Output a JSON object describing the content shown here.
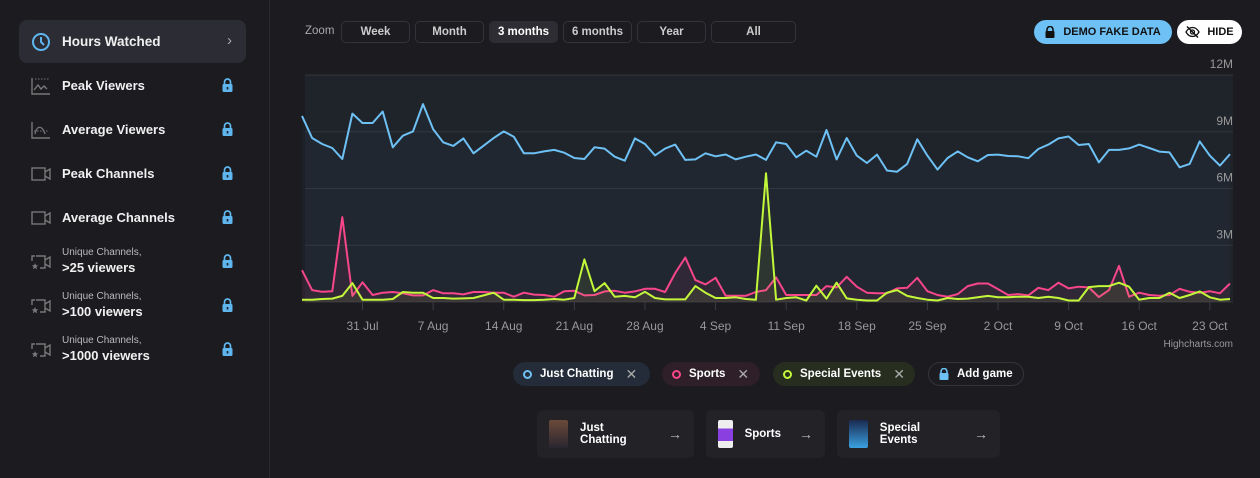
{
  "sidebar": {
    "items": [
      {
        "label": "Hours Watched",
        "icon": "clock-icon",
        "active": true
      },
      {
        "label": "Peak Viewers",
        "icon": "peak-chart-icon",
        "locked": true
      },
      {
        "label": "Average Viewers",
        "icon": "average-chart-icon",
        "locked": true
      },
      {
        "label": "Peak Channels",
        "icon": "camera-icon",
        "locked": true
      },
      {
        "label": "Average Channels",
        "icon": "camera-icon",
        "locked": true
      },
      {
        "small": "Unique Channels,",
        "label": ">25 viewers",
        "icon": "camera-star-icon",
        "locked": true
      },
      {
        "small": "Unique Channels,",
        "label": ">100 viewers",
        "icon": "camera-star-icon",
        "locked": true
      },
      {
        "small": "Unique Channels,",
        "label": ">1000 viewers",
        "icon": "camera-star-icon",
        "locked": true
      }
    ]
  },
  "toolbar": {
    "zoom_label": "Zoom",
    "buttons": [
      "Week",
      "Month",
      "3 months",
      "6 months",
      "Year",
      "All"
    ],
    "active": "3 months",
    "demo_label": "DEMO FAKE DATA",
    "hide_label": "HIDE"
  },
  "colors": {
    "accent": "#6ec1f5",
    "just_chatting": "#6ec1f5",
    "sports": "#f7468a",
    "special_events": "#c3f73a"
  },
  "legend": [
    {
      "label": "Just Chatting",
      "color": "#6ec1f5"
    },
    {
      "label": "Sports",
      "color": "#f7468a"
    },
    {
      "label": "Special Events",
      "color": "#c3f73a"
    }
  ],
  "add_game_label": "Add game",
  "cards": [
    {
      "label": "Just Chatting"
    },
    {
      "label": "Sports"
    },
    {
      "label": "Special Events"
    }
  ],
  "credit": "Highcharts.com",
  "chart_data": {
    "type": "line",
    "ylim": [
      0,
      12
    ],
    "y_unit": "M",
    "y_ticks": [
      "3M",
      "6M",
      "9M",
      "12M"
    ],
    "x_ticks": [
      "31 Jul",
      "7 Aug",
      "14 Aug",
      "21 Aug",
      "28 Aug",
      "4 Sep",
      "11 Sep",
      "18 Sep",
      "25 Sep",
      "2 Oct",
      "9 Oct",
      "16 Oct",
      "23 Oct"
    ],
    "grid": true,
    "x": [
      "25 Jul",
      "26 Jul",
      "27 Jul",
      "28 Jul",
      "29 Jul",
      "30 Jul",
      "31 Jul",
      "1 Aug",
      "2 Aug",
      "3 Aug",
      "4 Aug",
      "5 Aug",
      "6 Aug",
      "7 Aug",
      "8 Aug",
      "9 Aug",
      "10 Aug",
      "11 Aug",
      "12 Aug",
      "13 Aug",
      "14 Aug",
      "15 Aug",
      "16 Aug",
      "17 Aug",
      "18 Aug",
      "19 Aug",
      "20 Aug",
      "21 Aug",
      "22 Aug",
      "23 Aug",
      "24 Aug",
      "25 Aug",
      "26 Aug",
      "27 Aug",
      "28 Aug",
      "29 Aug",
      "30 Aug",
      "31 Aug",
      "1 Sep",
      "2 Sep",
      "3 Sep",
      "4 Sep",
      "5 Sep",
      "6 Sep",
      "7 Sep",
      "8 Sep",
      "9 Sep",
      "10 Sep",
      "11 Sep",
      "12 Sep",
      "13 Sep",
      "14 Sep",
      "15 Sep",
      "16 Sep",
      "17 Sep",
      "18 Sep",
      "19 Sep",
      "20 Sep",
      "21 Sep",
      "22 Sep",
      "23 Sep",
      "24 Sep",
      "25 Sep",
      "26 Sep",
      "27 Sep",
      "28 Sep",
      "29 Sep",
      "30 Sep",
      "1 Oct",
      "2 Oct",
      "3 Oct",
      "4 Oct",
      "5 Oct",
      "6 Oct",
      "7 Oct",
      "8 Oct",
      "9 Oct",
      "10 Oct",
      "11 Oct",
      "12 Oct",
      "13 Oct",
      "14 Oct",
      "15 Oct",
      "16 Oct",
      "17 Oct",
      "18 Oct",
      "19 Oct",
      "20 Oct",
      "21 Oct",
      "22 Oct",
      "23 Oct",
      "24 Oct",
      "25 Oct"
    ],
    "series": [
      {
        "name": "Just Chatting",
        "color": "#6ec1f5",
        "values": [
          9.84,
          8.67,
          8.35,
          8.14,
          7.56,
          9.96,
          9.46,
          9.46,
          10.07,
          8.18,
          8.79,
          9.02,
          10.46,
          9.14,
          8.44,
          8.25,
          8.65,
          7.86,
          8.26,
          8.67,
          9.02,
          8.74,
          7.86,
          7.86,
          7.96,
          8.04,
          7.89,
          7.61,
          7.56,
          8.18,
          8.11,
          7.68,
          7.47,
          8.65,
          8.35,
          7.75,
          8.11,
          8.32,
          7.51,
          7.54,
          7.86,
          7.7,
          7.8,
          7.54,
          7.68,
          7.8,
          7.51,
          8.44,
          8.35,
          7.65,
          8.0,
          7.68,
          9.09,
          7.54,
          8.67,
          7.74,
          7.35,
          7.79,
          6.95,
          6.89,
          7.3,
          8.6,
          7.74,
          7.0,
          7.61,
          7.96,
          7.65,
          7.44,
          7.77,
          7.79,
          7.72,
          7.7,
          7.6,
          8.09,
          8.32,
          8.65,
          8.75,
          8.3,
          8.35,
          7.38,
          8.04,
          8.04,
          8.12,
          8.32,
          8.14,
          7.95,
          7.91,
          7.12,
          7.3,
          8.49,
          7.74,
          7.21,
          7.82
        ]
      },
      {
        "name": "Sports",
        "color": "#f7468a",
        "values": [
          1.68,
          0.63,
          0.54,
          0.57,
          4.49,
          0.32,
          1.04,
          0.37,
          0.49,
          0.53,
          0.46,
          0.35,
          0.35,
          0.63,
          0.46,
          0.46,
          0.4,
          0.53,
          0.53,
          0.49,
          0.49,
          0.28,
          0.49,
          0.39,
          0.37,
          0.28,
          0.57,
          0.59,
          0.35,
          0.37,
          0.56,
          0.59,
          0.49,
          0.56,
          0.7,
          0.7,
          0.53,
          1.53,
          2.35,
          1.16,
          0.93,
          1.28,
          0.33,
          0.33,
          0.33,
          0.53,
          0.63,
          1.3,
          0.37,
          0.37,
          0.37,
          0.37,
          0.84,
          0.77,
          1.33,
          0.81,
          0.49,
          0.46,
          0.46,
          0.72,
          0.75,
          1.28,
          0.57,
          0.37,
          0.28,
          0.42,
          0.84,
          0.98,
          0.98,
          0.68,
          0.37,
          0.42,
          0.35,
          0.75,
          0.63,
          1.02,
          0.72,
          0.81,
          0.77,
          0.26,
          0.63,
          1.91,
          0.28,
          0.49,
          0.37,
          0.33,
          0.37,
          0.7,
          0.54,
          0.49,
          0.57,
          0.46,
          0.98
        ]
      },
      {
        "name": "Special Events",
        "color": "#c3f73a",
        "values": [
          0.12,
          0.12,
          0.16,
          0.18,
          0.32,
          1.0,
          0.12,
          0.12,
          0.12,
          0.16,
          0.53,
          0.49,
          0.49,
          0.21,
          0.21,
          0.18,
          0.19,
          0.21,
          0.35,
          0.49,
          0.12,
          0.12,
          0.1,
          0.1,
          0.12,
          0.16,
          0.12,
          0.21,
          2.25,
          0.57,
          1.0,
          0.28,
          0.32,
          0.25,
          0.54,
          0.21,
          0.14,
          0.14,
          0.14,
          0.84,
          0.49,
          0.21,
          0.21,
          0.25,
          0.16,
          0.12,
          6.81,
          0.12,
          0.21,
          0.25,
          0.08,
          0.86,
          0.18,
          1.02,
          0.19,
          0.12,
          0.08,
          0.08,
          0.49,
          0.63,
          0.32,
          0.21,
          0.12,
          0.08,
          0.21,
          0.16,
          0.18,
          0.25,
          0.32,
          0.25,
          0.25,
          0.28,
          0.28,
          0.21,
          0.28,
          0.21,
          0.08,
          0.08,
          0.79,
          0.84,
          0.84,
          1.02,
          0.81,
          0.12,
          0.21,
          0.21,
          0.49,
          0.21,
          0.37,
          0.56,
          0.25,
          0.12,
          0.16
        ]
      }
    ]
  }
}
